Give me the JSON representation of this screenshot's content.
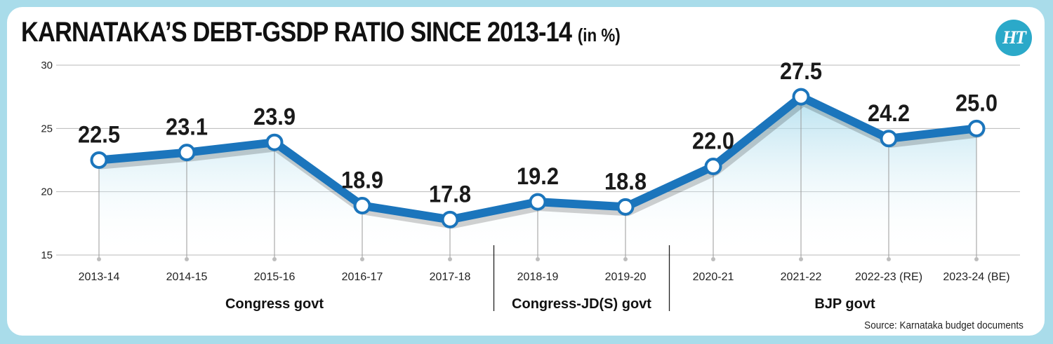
{
  "header": {
    "title": "KARNATAKA’S DEBT-GSDP RATIO SINCE 2013-14",
    "subtitle": "(in %)",
    "logo_text": "HT"
  },
  "footer": {
    "source": "Source: Karnataka budget documents"
  },
  "colors": {
    "background": "#a9dcea",
    "line": "#1b75bc",
    "area_top": "#9fd7ea",
    "logo": "#2ba9c9"
  },
  "chart_data": {
    "type": "line",
    "categories": [
      "2013-14",
      "2014-15",
      "2015-16",
      "2016-17",
      "2017-18",
      "2018-19",
      "2019-20",
      "2020-21",
      "2021-22",
      "2022-23 (RE)",
      "2023-24 (BE)"
    ],
    "series": [
      {
        "values": [
          22.5,
          23.1,
          23.9,
          18.9,
          17.8,
          19.2,
          18.8,
          22.0,
          27.5,
          24.2,
          25.0
        ]
      }
    ],
    "data_labels": [
      "22.5",
      "23.1",
      "23.9",
      "18.9",
      "17.8",
      "19.2",
      "18.8",
      "22.0",
      "27.5",
      "24.2",
      "25.0"
    ],
    "ylim": [
      15,
      30
    ],
    "yticks": [
      15,
      20,
      25,
      30
    ],
    "ytick_labels": [
      "15",
      "20",
      "25",
      "30"
    ],
    "grid": true,
    "groups": [
      {
        "label": "Congress govt",
        "start": 0,
        "end": 4
      },
      {
        "label": "Congress-JD(S) govt",
        "start": 5,
        "end": 6
      },
      {
        "label": "BJP govt",
        "start": 7,
        "end": 10
      }
    ],
    "xlabel": "",
    "ylabel": ""
  }
}
